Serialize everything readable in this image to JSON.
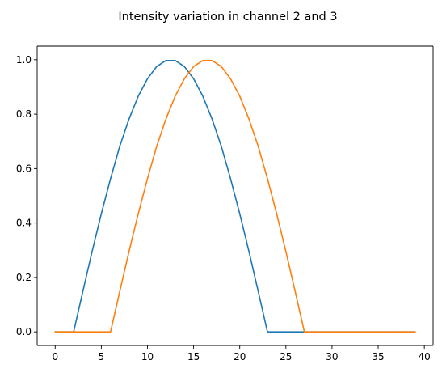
{
  "chart_data": {
    "type": "line",
    "title": "Intensity variation in channel 2 and 3",
    "xlabel": "",
    "ylabel": "",
    "xlim": [
      -1.95,
      40.95
    ],
    "ylim": [
      -0.05,
      1.05
    ],
    "xticks": [
      0,
      5,
      10,
      15,
      20,
      25,
      30,
      35,
      40
    ],
    "xtick_labels": [
      "0",
      "5",
      "10",
      "15",
      "20",
      "25",
      "30",
      "35",
      "40"
    ],
    "yticks": [
      0.0,
      0.2,
      0.4,
      0.6,
      0.8,
      1.0
    ],
    "ytick_labels": [
      "0.0",
      "0.2",
      "0.4",
      "0.6",
      "0.8",
      "1.0"
    ],
    "grid": false,
    "legend": "none",
    "x": [
      0,
      1,
      2,
      3,
      4,
      5,
      6,
      7,
      8,
      9,
      10,
      11,
      12,
      13,
      14,
      15,
      16,
      17,
      18,
      19,
      20,
      21,
      22,
      23,
      24,
      25,
      26,
      27,
      28,
      29,
      30,
      31,
      32,
      33,
      34,
      35,
      36,
      37,
      38,
      39
    ],
    "series": [
      {
        "color": "#1f77b4",
        "values": [
          0,
          0,
          0,
          0.149,
          0.295,
          0.434,
          0.563,
          0.682,
          0.782,
          0.866,
          0.93,
          0.975,
          0.997,
          0.997,
          0.975,
          0.93,
          0.866,
          0.782,
          0.682,
          0.563,
          0.434,
          0.295,
          0.149,
          0,
          0,
          0,
          0,
          0,
          0,
          0,
          0,
          0,
          0,
          0,
          0,
          0,
          0,
          0,
          0,
          0
        ]
      },
      {
        "color": "#ff7f0e",
        "values": [
          0,
          0,
          0,
          0,
          0,
          0,
          0,
          0.149,
          0.295,
          0.434,
          0.563,
          0.682,
          0.782,
          0.866,
          0.93,
          0.975,
          0.997,
          0.997,
          0.975,
          0.93,
          0.866,
          0.782,
          0.682,
          0.563,
          0.434,
          0.295,
          0.149,
          0,
          0,
          0,
          0,
          0,
          0,
          0,
          0,
          0,
          0,
          0,
          0,
          0
        ]
      }
    ]
  }
}
